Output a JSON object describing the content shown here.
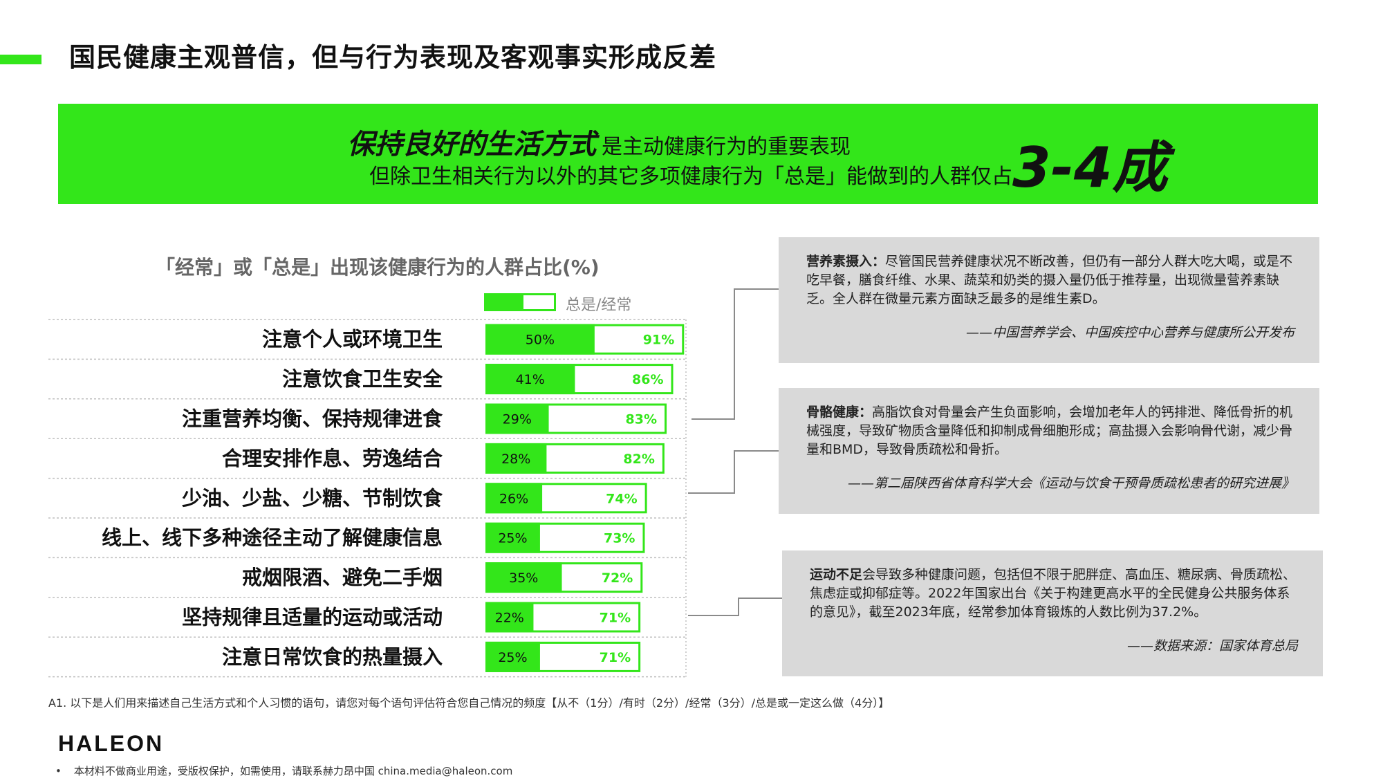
{
  "page_title": "国民健康主观普信，但与行为表现及客观事实形成反差",
  "banner": {
    "emphasis": "保持良好的生活方式",
    "line1_rest": "是主动健康行为的重要表现",
    "line2": "但除卫生相关行为以外的其它多项健康行为「总是」能做到的人群仅占",
    "big_number": "3-4成"
  },
  "colors": {
    "accent": "#33e61a",
    "callout_bg": "#d9d9d9",
    "grid": "#bfbfbf"
  },
  "chart_data": {
    "type": "bar",
    "title": "「经常」或「总是」出现该健康行为的人群占比(%)",
    "legend": "总是/经常",
    "categories": [
      "注意个人或环境卫生",
      "注意饮食卫生安全",
      "注重营养均衡、保持规律进食",
      "合理安排作息、劳逸结合",
      "少油、少盐、少糖、节制饮食",
      "线上、线下多种途径主动了解健康信息",
      "戒烟限酒、避免二手烟",
      "坚持规律且适量的运动或活动",
      "注意日常饮食的热量摄入"
    ],
    "series": [
      {
        "name": "总是",
        "values": [
          50,
          41,
          29,
          28,
          26,
          25,
          35,
          22,
          25
        ],
        "labels": [
          "50%",
          "41%",
          "29%",
          "28%",
          "26%",
          "25%",
          "35%",
          "22%",
          "25%"
        ]
      },
      {
        "name": "经常",
        "values": [
          91,
          86,
          83,
          82,
          74,
          73,
          72,
          71,
          71
        ],
        "labels": [
          "91%",
          "86%",
          "83%",
          "82%",
          "74%",
          "73%",
          "72%",
          "71%",
          "71%"
        ]
      }
    ]
  },
  "callouts": [
    {
      "bold": "营养素摄入：",
      "text": "尽管国民营养健康状况不断改善，但仍有一部分人群大吃大喝，或是不吃早餐，膳食纤维、水果、蔬菜和奶类的摄入量仍低于推荐量，出现微量营养素缺乏。全人群在微量元素方面缺乏最多的是维生素D。",
      "source": "——中国营养学会、中国疾控中心营养与健康所公开发布"
    },
    {
      "bold": "骨骼健康：",
      "text": "高脂饮食对骨量会产生负面影响，会增加老年人的钙排泄、降低骨折的机械强度，导致矿物质含量降低和抑制成骨细胞形成；高盐摄入会影响骨代谢，减少骨量和BMD，导致骨质疏松和骨折。",
      "source": "——第二届陕西省体育科学大会《运动与饮食干预骨质疏松患者的研究进展》"
    },
    {
      "bold": "运动不足",
      "text": "会导致多种健康问题，包括但不限于肥胖症、高血压、糖尿病、骨质疏松、焦虑症或抑郁症等。2022年国家出台《关于构建更高水平的全民健身公共服务体系的意见》，截至2023年底，经常参加体育锻炼的人数比例为37.2%。",
      "source": "——数据来源：国家体育总局"
    }
  ],
  "footnote": "A1. 以下是人们用来描述自己生活方式和个人习惯的语句，请您对每个语句评估符合您自己情况的频度【从不（1分）/有时（2分）/经常（3分）/总是或一定这么做（4分）】",
  "logo": "HALEON",
  "copyright": "本材料不做商业用途，受版权保护，如需使用，请联系赫力昂中国 china.media@haleon.com"
}
